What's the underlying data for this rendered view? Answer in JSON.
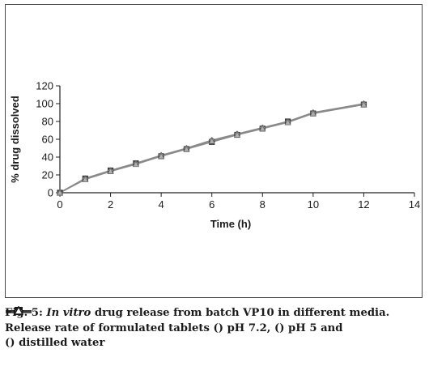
{
  "chart_data": {
    "type": "line",
    "xlabel": "Time (h)",
    "ylabel": "% drug dissolved",
    "xlim": [
      0,
      14
    ],
    "ylim": [
      0,
      120
    ],
    "xticks": [
      "0",
      "2",
      "4",
      "6",
      "8",
      "10",
      "12",
      "14"
    ],
    "yticks": [
      "0",
      "20",
      "40",
      "60",
      "80",
      "100",
      "120"
    ],
    "grid": false,
    "x": [
      0,
      1,
      2,
      3,
      4,
      5,
      6,
      7,
      8,
      9,
      10,
      12
    ],
    "series": [
      {
        "name": "pH 7.2",
        "marker": "square",
        "values": [
          0,
          16,
          25,
          33,
          41,
          49,
          57,
          65,
          72,
          80,
          89,
          99
        ]
      },
      {
        "name": "pH 5",
        "marker": "diamond",
        "values": [
          0,
          16,
          25,
          33,
          42,
          50,
          59,
          66,
          73,
          80,
          90,
          100
        ]
      },
      {
        "name": "distilled water",
        "marker": "triangle",
        "values": [
          0,
          15,
          24,
          32,
          41,
          49,
          58,
          65,
          72,
          79,
          89,
          99
        ]
      }
    ]
  },
  "caption": {
    "fig_label": "Fig. 5: ",
    "in_vitro": "In vitro",
    "line1_rest": " drug release from batch VP10 in different media.",
    "line2_a": "Release rate of formulated tablets (",
    "line2_b": ") pH 7.2, (",
    "line2_c": ") pH 5 and",
    "line3_a": "(",
    "line3_b": ") distilled water"
  },
  "colors": {
    "axis": "#222222",
    "line": "#8a8a8a",
    "marker_fill": "#444444"
  }
}
